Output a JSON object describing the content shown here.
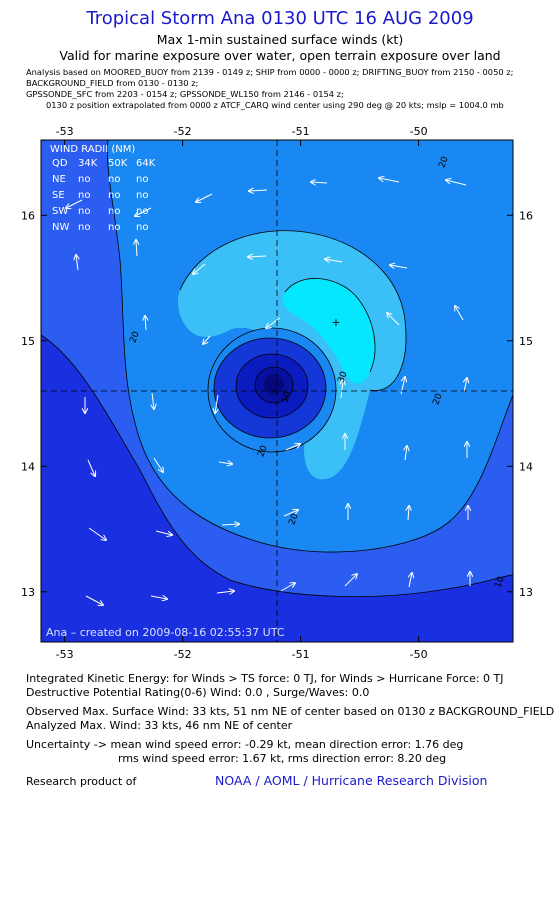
{
  "header": {
    "title": "Tropical Storm Ana 0130 UTC 16 AUG 2009",
    "subtitle1": "Max 1-min sustained surface winds (kt)",
    "subtitle2": "Valid for marine exposure over water, open terrain exposure over land",
    "meta1": "Analysis based on  MOORED_BUOY from 2139 - 0149 z;  SHIP from 0000 - 0000 z;  DRIFTING_BUOY from 2150 - 0050 z;",
    "meta2": "BACKGROUND_FIELD from 0130 - 0130 z;",
    "meta3": "GPSSONDE_SFC from 2203 - 0154 z;  GPSSONDE_WL150 from 2146 - 0154 z;",
    "meta4": "0130 z position extrapolated from 0000 z ATCF_CARQ wind center using 290 deg @ 20 kts; mslp = 1004.0 mb"
  },
  "chart_data": {
    "type": "contour",
    "x_ticks": [
      "-53",
      "-52",
      "-51",
      "-50"
    ],
    "y_ticks": [
      "16",
      "15",
      "14",
      "13"
    ],
    "xlim": [
      -53.2,
      -49.2
    ],
    "ylim": [
      12.6,
      16.6
    ],
    "center": {
      "lon": -51.2,
      "lat": 14.6
    },
    "max_wind_marker": {
      "lon": -50.7,
      "lat": 15.15
    },
    "contour_labels": [
      "20",
      "20",
      "20",
      "20",
      "30",
      "10",
      "20",
      "10"
    ],
    "wind_radii": {
      "title": "WIND RADII (NM)",
      "header": [
        "QD",
        "34K",
        "50K",
        "64K"
      ],
      "rows": [
        [
          "NE",
          "no",
          "no",
          "no"
        ],
        [
          "SE",
          "no",
          "no",
          "no"
        ],
        [
          "SW",
          "no",
          "no",
          "no"
        ],
        [
          "NW",
          "no",
          "no",
          "no"
        ]
      ]
    },
    "credit": "Ana – created on 2009-08-16 02:55:37 UTC",
    "colors": {
      "level0": "#1a2fe0",
      "level10": "#2a5df0",
      "level20": "#1a88f2",
      "level30": "#3ac0f6",
      "level40": "#05e6ff",
      "core1": "#1438d8",
      "core2": "#0a1cc0",
      "core3": "#0810a0"
    }
  },
  "stats": {
    "line1": "Integrated Kinetic Energy:  for Winds > TS force: 0 TJ,  for Winds > Hurricane Force: 0 TJ",
    "line2": "Destructive Potential Rating(0-6)   Wind: 0.0 , Surge/Waves: 0.0",
    "line3": "Observed Max. Surface Wind: 33 kts, 51 nm NE of center based on 0130 z BACKGROUND_FIELD",
    "line4": "Analyzed Max. Wind: 33 kts, 46 nm NE of center",
    "line5": "Uncertainty -> mean wind speed error:  -0.29 kt,   mean direction error: 1.76 deg",
    "line6": "rms wind speed error: 1.67 kt,   rms direction error: 8.20 deg",
    "research_label": "Research product of",
    "research_org": "NOAA / AOML / Hurricane Research Division"
  }
}
